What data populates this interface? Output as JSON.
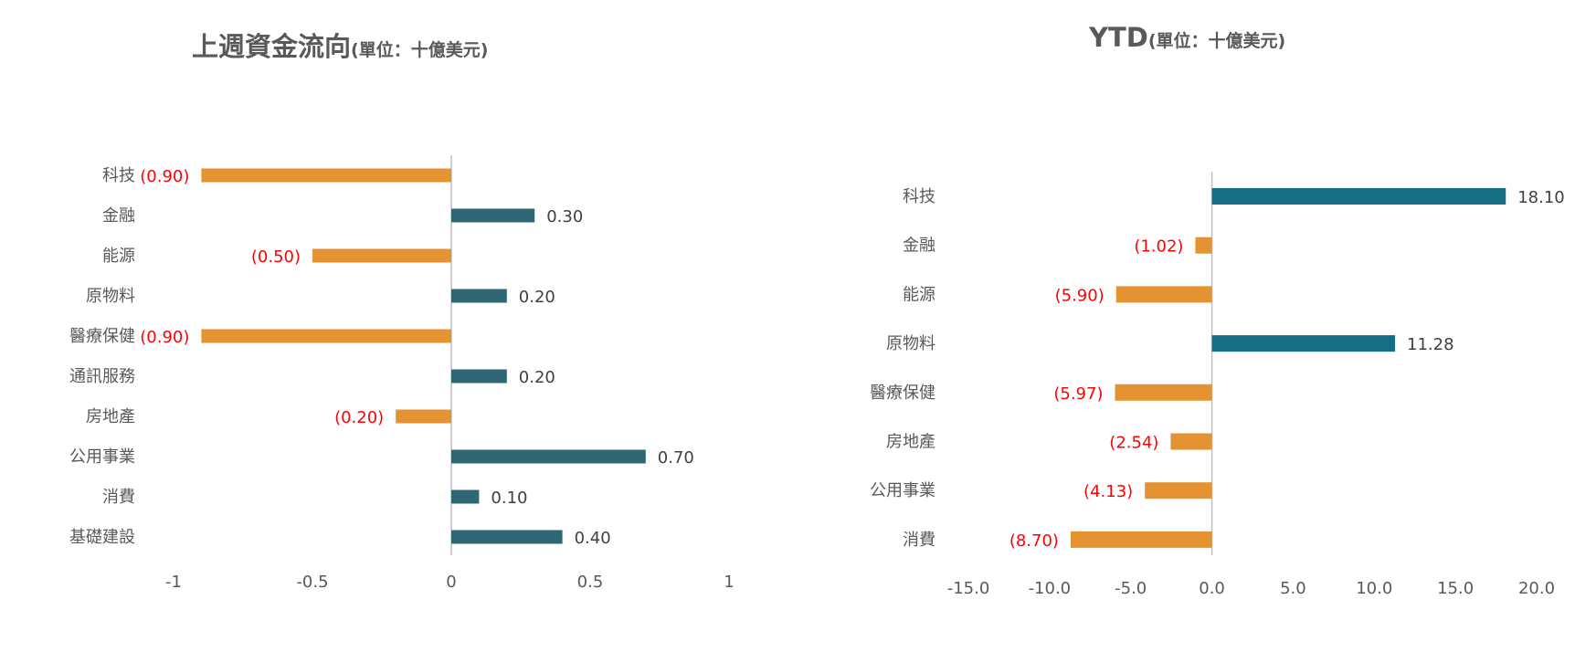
{
  "charts": {
    "left": {
      "title": "上週資金流向",
      "unit": "(單位：十億美元)"
    },
    "right": {
      "title": "YTD",
      "unit": "(單位：十億美元)"
    }
  },
  "colors": {
    "negative": "#E59233",
    "positive_left": "#2E6674",
    "positive_right": "#156E84",
    "negative_label": "#FF0000",
    "positive_label": "#404040",
    "axis": "#BFBFBF",
    "text": "#595959"
  },
  "chart_data": [
    {
      "type": "bar",
      "orientation": "horizontal",
      "title": "上週資金流向(單位：十億美元)",
      "categories": [
        "科技",
        "金融",
        "能源",
        "原物料",
        "醫療保健",
        "通訊服務",
        "房地產",
        "公用事業",
        "消費",
        "基礎建設"
      ],
      "values": [
        -0.9,
        0.3,
        -0.5,
        0.2,
        -0.9,
        0.2,
        -0.2,
        0.7,
        0.1,
        0.4
      ],
      "data_labels": [
        "(0.90)",
        "0.30",
        "(0.50)",
        "0.20",
        "(0.90)",
        "0.20",
        "(0.20)",
        "0.70",
        "0.10",
        "0.40"
      ],
      "xlim": [
        -1,
        1
      ],
      "xticks": [
        "-1",
        "-0.5",
        "0",
        "0.5",
        "1"
      ],
      "xtick_values": [
        -1,
        -0.5,
        0,
        0.5,
        1
      ],
      "grid": false,
      "legend": "none"
    },
    {
      "type": "bar",
      "orientation": "horizontal",
      "title": "YTD(單位：十億美元)",
      "categories": [
        "科技",
        "金融",
        "能源",
        "原物料",
        "醫療保健",
        "房地產",
        "公用事業",
        "消費"
      ],
      "values": [
        18.1,
        -1.02,
        -5.9,
        11.28,
        -5.97,
        -2.54,
        -4.13,
        -8.7
      ],
      "data_labels": [
        "18.10",
        "(1.02)",
        "(5.90)",
        "11.28",
        "(5.97)",
        "(2.54)",
        "(4.13)",
        "(8.70)"
      ],
      "xlim": [
        -15,
        20
      ],
      "xticks": [
        "-15.0",
        "-10.0",
        "-5.0",
        "0.0",
        "5.0",
        "10.0",
        "15.0",
        "20.0"
      ],
      "xtick_values": [
        -15,
        -10,
        -5,
        0,
        5,
        10,
        15,
        20
      ],
      "grid": false,
      "legend": "none"
    }
  ]
}
